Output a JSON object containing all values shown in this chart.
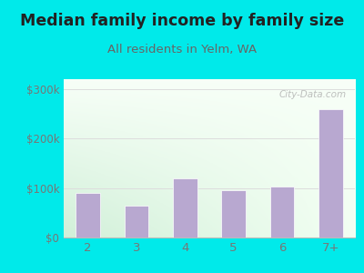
{
  "title": "Median family income by family size",
  "subtitle": "All residents in Yelm, WA",
  "categories": [
    "2",
    "3",
    "4",
    "5",
    "6",
    "7+"
  ],
  "values": [
    90000,
    65000,
    120000,
    95000,
    103000,
    260000
  ],
  "bar_color": "#b8a8d0",
  "bar_edge_color": "#ffffff",
  "title_fontsize": 12.5,
  "subtitle_fontsize": 9.5,
  "title_color": "#222222",
  "subtitle_color": "#666666",
  "bg_outer_color": "#00eaea",
  "bg_plot_color_topleft": "#f0faf0",
  "bg_plot_color_topright": "#ffffff",
  "bg_plot_color_bottom": "#d8f0d8",
  "ylabel_ticks": [
    0,
    100000,
    200000,
    300000
  ],
  "ylabel_labels": [
    "$0",
    "$100k",
    "$200k",
    "$300k"
  ],
  "ylim": [
    0,
    320000
  ],
  "watermark": "City-Data.com",
  "tick_label_color": "#777777",
  "grid_color": "#dddddd",
  "bar_linewidth": 0.5
}
